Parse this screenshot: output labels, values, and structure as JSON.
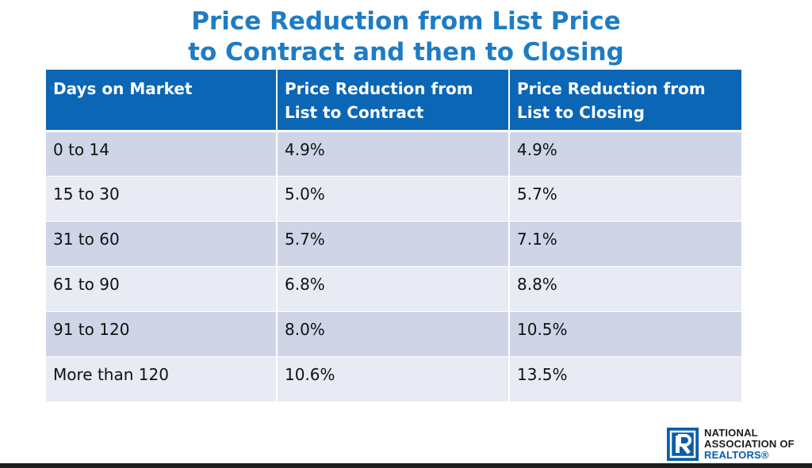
{
  "title": {
    "line1": "Price Reduction from List Price",
    "line2": "to Contract and then to Closing"
  },
  "table": {
    "headers": [
      "Days on Market",
      "Price Reduction from List to Contract",
      "Price Reduction from List to Closing"
    ],
    "rows": [
      [
        "0 to 14",
        "4.9%",
        "4.9%"
      ],
      [
        "15 to 30",
        "5.0%",
        "5.7%"
      ],
      [
        "31 to 60",
        "5.7%",
        "7.1%"
      ],
      [
        "61 to 90",
        "6.8%",
        "8.8%"
      ],
      [
        "91 to 120",
        "8.0%",
        "10.5%"
      ],
      [
        "More than 120",
        "10.6%",
        "13.5%"
      ]
    ]
  },
  "logo": {
    "line1": "NATIONAL",
    "line2": "ASSOCIATION OF",
    "line3": "REALTORS®"
  },
  "colors": {
    "title": "#1e7cc4",
    "header_bg": "#0b66b6",
    "row_odd": "#cfd5e7",
    "row_even": "#e9ebf4",
    "logo_blue": "#0a5da8"
  }
}
